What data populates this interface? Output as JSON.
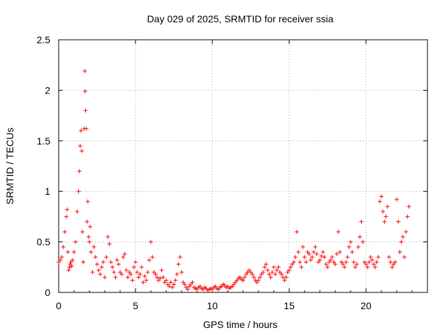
{
  "chart_data": {
    "type": "scatter",
    "title": "Day 029 of 2025, SRMTID for receiver ssia",
    "xlabel": "GPS time / hours",
    "ylabel": "SRMTID / TECUs",
    "xlim": [
      0,
      24
    ],
    "ylim": [
      0,
      2.5
    ],
    "xticks": [
      0,
      5,
      10,
      15,
      20
    ],
    "xtick_labels": [
      "0",
      "5",
      "10",
      "15",
      "20"
    ],
    "yticks": [
      0,
      0.5,
      1,
      1.5,
      2,
      2.5
    ],
    "ytick_labels": [
      "0",
      "0.5",
      "1",
      "1.5",
      "2",
      "2.5"
    ],
    "grid": true,
    "marker": "+",
    "marker_color": "#ff0000",
    "series": [
      {
        "name": "SRMTID",
        "x": [
          0.0,
          0.1,
          0.2,
          0.3,
          0.4,
          0.5,
          0.55,
          0.6,
          0.65,
          0.7,
          0.75,
          0.8,
          0.85,
          0.9,
          1.0,
          1.1,
          1.2,
          1.3,
          1.35,
          1.4,
          1.45,
          1.5,
          1.55,
          1.6,
          1.65,
          1.7,
          1.72,
          1.75,
          1.8,
          1.85,
          1.9,
          1.95,
          2.0,
          2.05,
          2.1,
          2.2,
          2.3,
          2.4,
          2.5,
          2.6,
          2.7,
          2.8,
          2.9,
          3.0,
          3.1,
          3.2,
          3.3,
          3.4,
          3.5,
          3.6,
          3.7,
          3.8,
          3.9,
          4.0,
          4.1,
          4.2,
          4.3,
          4.4,
          4.5,
          4.6,
          4.7,
          4.8,
          4.9,
          5.0,
          5.1,
          5.2,
          5.3,
          5.4,
          5.5,
          5.6,
          5.7,
          5.8,
          5.9,
          6.0,
          6.1,
          6.2,
          6.3,
          6.4,
          6.5,
          6.6,
          6.7,
          6.8,
          6.9,
          7.0,
          7.1,
          7.2,
          7.3,
          7.4,
          7.5,
          7.6,
          7.7,
          7.8,
          7.9,
          8.0,
          8.1,
          8.2,
          8.3,
          8.4,
          8.5,
          8.6,
          8.7,
          8.8,
          8.9,
          9.0,
          9.1,
          9.2,
          9.3,
          9.4,
          9.5,
          9.6,
          9.7,
          9.8,
          9.9,
          10.0,
          10.1,
          10.2,
          10.3,
          10.4,
          10.5,
          10.6,
          10.7,
          10.8,
          10.9,
          11.0,
          11.1,
          11.2,
          11.3,
          11.4,
          11.5,
          11.6,
          11.7,
          11.8,
          11.9,
          12.0,
          12.1,
          12.2,
          12.3,
          12.4,
          12.5,
          12.6,
          12.7,
          12.8,
          12.9,
          13.0,
          13.1,
          13.2,
          13.3,
          13.4,
          13.5,
          13.6,
          13.7,
          13.8,
          13.9,
          14.0,
          14.1,
          14.2,
          14.3,
          14.4,
          14.5,
          14.6,
          14.7,
          14.8,
          14.9,
          15.0,
          15.1,
          15.2,
          15.3,
          15.4,
          15.5,
          15.6,
          15.7,
          15.8,
          15.9,
          16.0,
          16.1,
          16.2,
          16.3,
          16.4,
          16.5,
          16.6,
          16.7,
          16.8,
          16.9,
          17.0,
          17.1,
          17.2,
          17.3,
          17.4,
          17.5,
          17.6,
          17.7,
          17.8,
          17.9,
          18.0,
          18.1,
          18.2,
          18.3,
          18.4,
          18.5,
          18.6,
          18.7,
          18.8,
          18.9,
          19.0,
          19.1,
          19.2,
          19.3,
          19.4,
          19.5,
          19.6,
          19.7,
          19.8,
          19.9,
          20.0,
          20.1,
          20.2,
          20.3,
          20.4,
          20.5,
          20.6,
          20.7,
          20.8,
          20.9,
          21.0,
          21.1,
          21.2,
          21.3,
          21.4,
          21.5,
          21.6,
          21.7,
          21.8,
          21.9,
          22.0,
          22.1,
          22.2,
          22.3,
          22.4,
          22.5,
          22.6,
          22.7,
          22.8
        ],
        "y": [
          0.3,
          0.32,
          0.35,
          0.45,
          0.6,
          0.75,
          0.82,
          0.4,
          0.22,
          0.25,
          0.28,
          0.3,
          0.26,
          0.32,
          0.4,
          0.5,
          0.8,
          1.0,
          1.2,
          1.45,
          1.6,
          1.4,
          0.6,
          0.3,
          1.62,
          2.19,
          1.99,
          1.8,
          1.62,
          0.7,
          0.9,
          0.55,
          0.5,
          0.65,
          0.4,
          0.2,
          0.45,
          0.35,
          0.28,
          0.22,
          0.18,
          0.25,
          0.3,
          0.15,
          0.35,
          0.55,
          0.48,
          0.3,
          0.25,
          0.2,
          0.15,
          0.32,
          0.28,
          0.2,
          0.18,
          0.35,
          0.38,
          0.22,
          0.15,
          0.2,
          0.18,
          0.12,
          0.25,
          0.3,
          0.2,
          0.15,
          0.18,
          0.25,
          0.1,
          0.16,
          0.12,
          0.2,
          0.32,
          0.5,
          0.35,
          0.2,
          0.18,
          0.15,
          0.12,
          0.14,
          0.22,
          0.15,
          0.1,
          0.12,
          0.08,
          0.06,
          0.1,
          0.05,
          0.08,
          0.12,
          0.18,
          0.28,
          0.35,
          0.2,
          0.1,
          0.08,
          0.05,
          0.03,
          0.06,
          0.08,
          0.1,
          0.05,
          0.04,
          0.03,
          0.05,
          0.06,
          0.04,
          0.03,
          0.05,
          0.04,
          0.02,
          0.03,
          0.04,
          0.03,
          0.05,
          0.06,
          0.04,
          0.03,
          0.05,
          0.06,
          0.08,
          0.07,
          0.05,
          0.06,
          0.04,
          0.05,
          0.06,
          0.08,
          0.1,
          0.12,
          0.14,
          0.15,
          0.13,
          0.12,
          0.15,
          0.18,
          0.2,
          0.22,
          0.2,
          0.18,
          0.15,
          0.12,
          0.1,
          0.12,
          0.15,
          0.18,
          0.2,
          0.25,
          0.28,
          0.22,
          0.18,
          0.15,
          0.2,
          0.25,
          0.18,
          0.22,
          0.25,
          0.2,
          0.18,
          0.15,
          0.12,
          0.15,
          0.2,
          0.22,
          0.25,
          0.28,
          0.3,
          0.35,
          0.6,
          0.4,
          0.3,
          0.25,
          0.45,
          0.35,
          0.3,
          0.4,
          0.38,
          0.32,
          0.35,
          0.4,
          0.45,
          0.38,
          0.3,
          0.32,
          0.36,
          0.4,
          0.35,
          0.28,
          0.25,
          0.3,
          0.32,
          0.35,
          0.3,
          0.28,
          0.38,
          0.6,
          0.4,
          0.3,
          0.28,
          0.25,
          0.3,
          0.35,
          0.45,
          0.5,
          0.4,
          0.3,
          0.25,
          0.28,
          0.45,
          0.55,
          0.7,
          0.5,
          0.3,
          0.28,
          0.25,
          0.3,
          0.35,
          0.32,
          0.28,
          0.25,
          0.3,
          0.35,
          0.9,
          0.95,
          0.8,
          0.7,
          0.75,
          0.85,
          0.35,
          0.3,
          0.25,
          0.28,
          0.3,
          0.92,
          0.7,
          0.4,
          0.5,
          0.55,
          0.35,
          0.6,
          0.75,
          0.85
        ]
      }
    ]
  }
}
